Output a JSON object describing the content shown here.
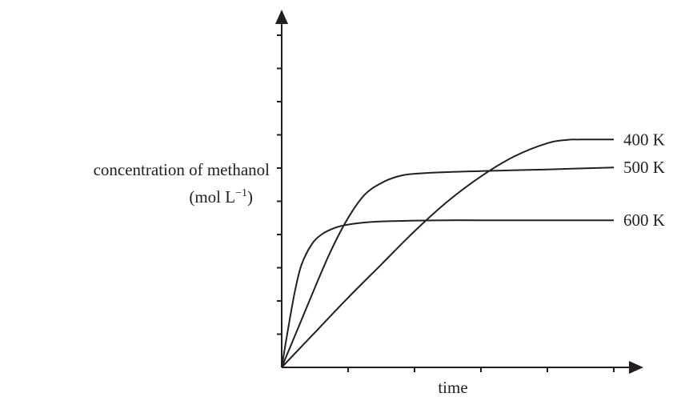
{
  "chart_data": {
    "type": "line",
    "xlabel": "time",
    "ylabel_line1": "concentration of methanol",
    "ylabel_unit_prefix": "(mol L",
    "ylabel_unit_sup": "−1",
    "ylabel_unit_suffix": ")",
    "x_ticks": 5,
    "y_ticks": 10,
    "grid": false,
    "legend": "inline labels at right end of each curve",
    "series": [
      {
        "name": "400 K",
        "x": [
          0,
          0.5,
          1,
          1.5,
          2,
          2.5,
          3,
          3.5,
          4,
          4.3,
          4.5,
          5
        ],
        "y": [
          0,
          1.05,
          2.1,
          3.1,
          4.1,
          5.0,
          5.75,
          6.35,
          6.75,
          6.85,
          6.86,
          6.86
        ]
      },
      {
        "name": "500 K",
        "x": [
          0,
          0.25,
          0.5,
          0.75,
          1,
          1.25,
          1.5,
          1.75,
          2,
          2.5,
          3,
          4,
          5
        ],
        "y": [
          0,
          1.2,
          2.4,
          3.55,
          4.5,
          5.2,
          5.55,
          5.75,
          5.83,
          5.88,
          5.91,
          5.96,
          6.02
        ]
      },
      {
        "name": "600 K",
        "x": [
          0,
          0.1,
          0.2,
          0.3,
          0.45,
          0.6,
          0.8,
          1,
          1.3,
          1.6,
          2,
          2.5,
          3,
          4,
          5
        ],
        "y": [
          0,
          1.2,
          2.3,
          3.1,
          3.7,
          4.0,
          4.2,
          4.3,
          4.37,
          4.4,
          4.42,
          4.43,
          4.43,
          4.43,
          4.43
        ]
      }
    ]
  }
}
